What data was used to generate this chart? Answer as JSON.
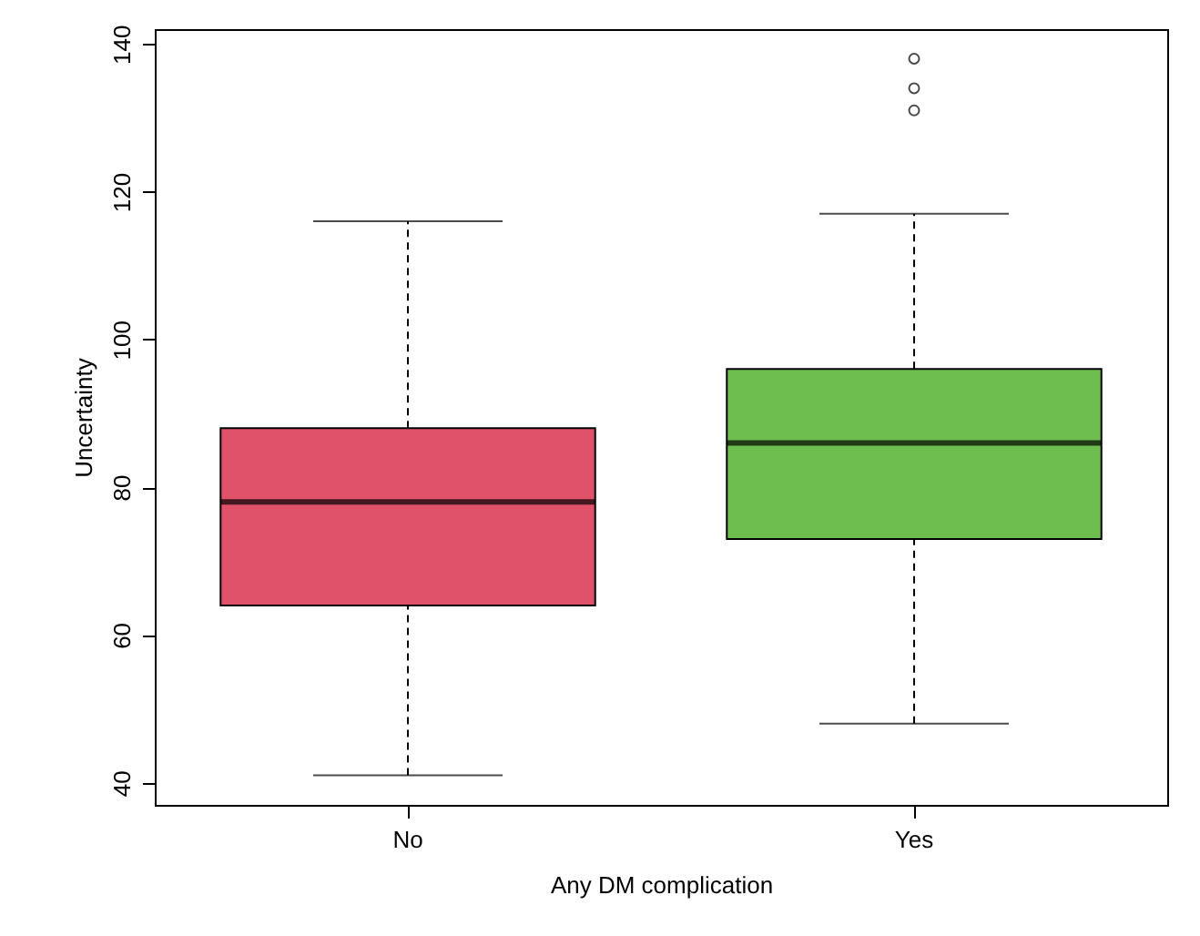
{
  "chart_data": {
    "type": "box",
    "xlabel": "Any DM complication",
    "ylabel": "Uncertainty",
    "categories": [
      "No",
      "Yes"
    ],
    "boxes": [
      {
        "low": 41,
        "q1": 64,
        "median": 78,
        "q3": 88,
        "high": 116
      },
      {
        "low": 48,
        "q1": 73,
        "median": 86,
        "q3": 96,
        "high": 117,
        "outliers": [
          131,
          134,
          138
        ]
      }
    ],
    "colors": [
      "#e05269",
      "#6dbe4f"
    ],
    "ylim": [
      37,
      142
    ],
    "yticks": [
      40,
      60,
      80,
      100,
      120,
      140
    ]
  }
}
